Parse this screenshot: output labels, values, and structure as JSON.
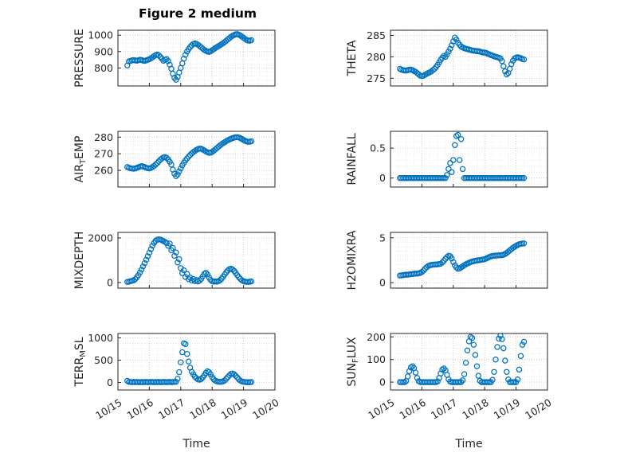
{
  "figure": {
    "title": "Figure 2 medium",
    "xlabel": "Time"
  },
  "marker": {
    "style": "open-circle",
    "color": "#0072BD"
  },
  "axis": {
    "xlim": [
      0,
      5
    ],
    "x_minor": 0.25,
    "x_tick_labels": [
      "10/15",
      "10/16",
      "10/17",
      "10/18",
      "10/19",
      "10/20"
    ],
    "x": {
      "start": 0.3,
      "step": 0.05,
      "count": 80
    }
  },
  "chart_data": [
    {
      "type": "scatter",
      "name": "PRESSURE",
      "ylabel": {
        "pre": "PRESSURE"
      },
      "ylim": [
        690,
        1030
      ],
      "yticks": [
        800,
        900,
        1000
      ],
      "yminor": 25,
      "y": [
        815,
        840,
        843,
        846,
        848,
        846,
        844,
        847,
        850,
        848,
        845,
        843,
        846,
        850,
        853,
        858,
        865,
        872,
        878,
        882,
        877,
        868,
        856,
        844,
        850,
        854,
        842,
        820,
        795,
        765,
        740,
        728,
        745,
        772,
        800,
        828,
        856,
        880,
        900,
        915,
        928,
        938,
        946,
        950,
        947,
        941,
        934,
        926,
        918,
        910,
        905,
        900,
        898,
        902,
        908,
        915,
        921,
        927,
        933,
        939,
        945,
        951,
        958,
        966,
        974,
        982,
        990,
        996,
        1001,
        1005,
        1006,
        1003,
        998,
        991,
        984,
        977,
        971,
        967,
        966,
        970
      ]
    },
    {
      "type": "scatter",
      "name": "THETA",
      "ylabel": {
        "pre": "THETA"
      },
      "ylim": [
        273.2,
        286.2
      ],
      "yticks": [
        275,
        280,
        285
      ],
      "yminor": 1,
      "y": [
        277.2,
        277.0,
        276.9,
        276.8,
        276.8,
        276.9,
        277.0,
        277.0,
        276.9,
        276.7,
        276.5,
        276.2,
        275.9,
        275.6,
        275.5,
        275.6,
        275.8,
        276.0,
        276.2,
        276.4,
        276.6,
        276.9,
        277.2,
        277.6,
        278.1,
        278.7,
        279.3,
        279.8,
        280.2,
        280.0,
        280.6,
        281.2,
        281.9,
        282.7,
        283.6,
        284.5,
        284.0,
        283.3,
        282.8,
        282.4,
        282.2,
        282.0,
        281.9,
        281.8,
        281.7,
        281.6,
        281.5,
        281.4,
        281.4,
        281.3,
        281.3,
        281.2,
        281.1,
        281.0,
        281.0,
        280.9,
        280.7,
        280.6,
        280.4,
        280.3,
        280.1,
        280.0,
        279.9,
        279.8,
        279.6,
        279.0,
        277.8,
        276.6,
        275.9,
        276.2,
        277.2,
        278.3,
        279.1,
        279.6,
        279.8,
        279.9,
        279.8,
        279.7,
        279.5,
        279.4
      ]
    },
    {
      "type": "scatter",
      "name": "AIR_TEMP",
      "ylabel": {
        "pre": "AIR",
        "sub": "T",
        "post": "EMP"
      },
      "ylim": [
        250,
        283.5
      ],
      "yticks": [
        260,
        270,
        280
      ],
      "yminor": 2.5,
      "y": [
        262.0,
        261.6,
        261.3,
        261.1,
        261.0,
        261.2,
        261.5,
        261.9,
        262.3,
        262.6,
        262.4,
        262.0,
        261.6,
        261.3,
        261.2,
        261.5,
        262.0,
        262.7,
        263.5,
        264.4,
        265.4,
        266.4,
        267.2,
        267.8,
        268.0,
        267.6,
        266.6,
        265.2,
        263.5,
        260.5,
        258.0,
        256.6,
        257.6,
        259.4,
        261.2,
        263.0,
        264.6,
        266.0,
        267.2,
        268.3,
        269.3,
        270.2,
        271.0,
        271.7,
        272.3,
        272.8,
        273.1,
        273.0,
        272.6,
        272.0,
        271.4,
        270.9,
        270.6,
        270.7,
        271.1,
        271.8,
        272.6,
        273.4,
        274.2,
        275.0,
        275.7,
        276.4,
        277.0,
        277.6,
        278.1,
        278.6,
        279.0,
        279.4,
        279.7,
        279.9,
        280.0,
        279.8,
        279.4,
        278.9,
        278.3,
        277.8,
        277.4,
        277.2,
        277.3,
        277.5
      ]
    },
    {
      "type": "scatter",
      "name": "RAINFALL",
      "ylabel": {
        "pre": "RAINFALL"
      },
      "ylim": [
        -0.15,
        0.78
      ],
      "yticks": [
        0,
        0.5
      ],
      "yminor": 0.1,
      "y": [
        0,
        0,
        0,
        0,
        0,
        0,
        0,
        0,
        0,
        0,
        0,
        0,
        0,
        0,
        0,
        0,
        0,
        0,
        0,
        0,
        0,
        0,
        0,
        0,
        0,
        0,
        0,
        0,
        0,
        0,
        0.05,
        0.15,
        0.25,
        0.1,
        0.3,
        0.55,
        0.7,
        0.72,
        0.3,
        0.65,
        0.15,
        0,
        0,
        0,
        0,
        0,
        0,
        0,
        0,
        0,
        0,
        0,
        0,
        0,
        0,
        0,
        0,
        0,
        0,
        0,
        0,
        0,
        0,
        0,
        0,
        0,
        0,
        0,
        0,
        0,
        0,
        0,
        0,
        0,
        0,
        0,
        0,
        0,
        0,
        0
      ]
    },
    {
      "type": "scatter",
      "name": "MIXDEPTH",
      "ylabel": {
        "pre": "MIXDEPTH"
      },
      "ylim": [
        -250,
        2250
      ],
      "yticks": [
        0,
        2000
      ],
      "yminor": 250,
      "y": [
        30,
        40,
        60,
        80,
        100,
        150,
        230,
        330,
        450,
        580,
        720,
        870,
        1020,
        1180,
        1340,
        1500,
        1650,
        1780,
        1870,
        1920,
        1940,
        1930,
        1900,
        1860,
        1820,
        1780,
        1650,
        1750,
        1450,
        1550,
        1200,
        1350,
        900,
        1050,
        650,
        420,
        550,
        250,
        380,
        150,
        220,
        90,
        160,
        60,
        110,
        50,
        90,
        160,
        280,
        390,
        440,
        360,
        230,
        120,
        60,
        40,
        50,
        40,
        60,
        100,
        170,
        260,
        360,
        460,
        540,
        600,
        620,
        590,
        520,
        430,
        330,
        240,
        160,
        100,
        60,
        40,
        30,
        30,
        40,
        50
      ]
    },
    {
      "type": "scatter",
      "name": "H2OMIXRA",
      "ylabel": {
        "pre": "H2OMIXRA"
      },
      "ylim": [
        -0.6,
        5.6
      ],
      "yticks": [
        0,
        5
      ],
      "yminor": 0.5,
      "y": [
        0.8,
        0.82,
        0.85,
        0.87,
        0.9,
        0.9,
        0.92,
        0.95,
        0.97,
        1.0,
        1.0,
        1.02,
        1.05,
        1.1,
        1.2,
        1.35,
        1.55,
        1.72,
        1.85,
        1.93,
        1.98,
        2.0,
        2.02,
        2.03,
        2.05,
        2.08,
        2.12,
        2.25,
        2.45,
        2.65,
        2.85,
        3.0,
        2.95,
        2.7,
        2.3,
        1.95,
        1.7,
        1.55,
        1.6,
        1.7,
        1.82,
        1.95,
        2.05,
        2.15,
        2.22,
        2.3,
        2.35,
        2.4,
        2.45,
        2.48,
        2.5,
        2.52,
        2.55,
        2.58,
        2.62,
        2.7,
        2.78,
        2.86,
        2.93,
        2.98,
        3.0,
        3.02,
        3.03,
        3.05,
        3.06,
        3.08,
        3.12,
        3.2,
        3.32,
        3.46,
        3.6,
        3.74,
        3.88,
        4.0,
        4.1,
        4.2,
        4.28,
        4.33,
        4.36,
        4.38
      ]
    },
    {
      "type": "scatter",
      "name": "TERR_MSL",
      "ylabel": {
        "pre": "TERR",
        "sub": "M",
        "post": "SL"
      },
      "ylim": [
        -170,
        1100
      ],
      "yticks": [
        0,
        500,
        1000
      ],
      "yminor": 125,
      "y": [
        35,
        12,
        8,
        5,
        10,
        6,
        12,
        7,
        5,
        9,
        6,
        8,
        10,
        5,
        7,
        12,
        8,
        6,
        9,
        5,
        11,
        7,
        6,
        10,
        8,
        5,
        9,
        12,
        6,
        8,
        10,
        15,
        80,
        230,
        450,
        680,
        880,
        860,
        640,
        470,
        330,
        240,
        180,
        130,
        95,
        70,
        60,
        75,
        110,
        160,
        215,
        250,
        230,
        180,
        120,
        70,
        40,
        25,
        15,
        12,
        15,
        25,
        45,
        80,
        120,
        160,
        190,
        200,
        185,
        150,
        110,
        70,
        40,
        22,
        12,
        8,
        6,
        5,
        6,
        8
      ]
    },
    {
      "type": "scatter",
      "name": "SUN_FLUX",
      "ylabel": {
        "pre": "SUN",
        "sub": "F",
        "post": "LUX"
      },
      "ylim": [
        -35,
        215
      ],
      "yticks": [
        0,
        100,
        200
      ],
      "yminor": 25,
      "y": [
        0,
        0,
        0,
        0,
        5,
        25,
        48,
        65,
        70,
        62,
        42,
        18,
        4,
        0,
        0,
        0,
        0,
        0,
        0,
        0,
        0,
        0,
        0,
        0,
        3,
        18,
        38,
        55,
        60,
        52,
        32,
        12,
        2,
        0,
        0,
        0,
        0,
        0,
        0,
        0,
        8,
        35,
        85,
        140,
        180,
        200,
        195,
        165,
        120,
        70,
        28,
        6,
        0,
        0,
        0,
        0,
        0,
        0,
        0,
        10,
        45,
        100,
        155,
        192,
        205,
        190,
        150,
        95,
        45,
        12,
        0,
        0,
        0,
        0,
        0,
        12,
        55,
        115,
        165,
        178
      ]
    }
  ]
}
